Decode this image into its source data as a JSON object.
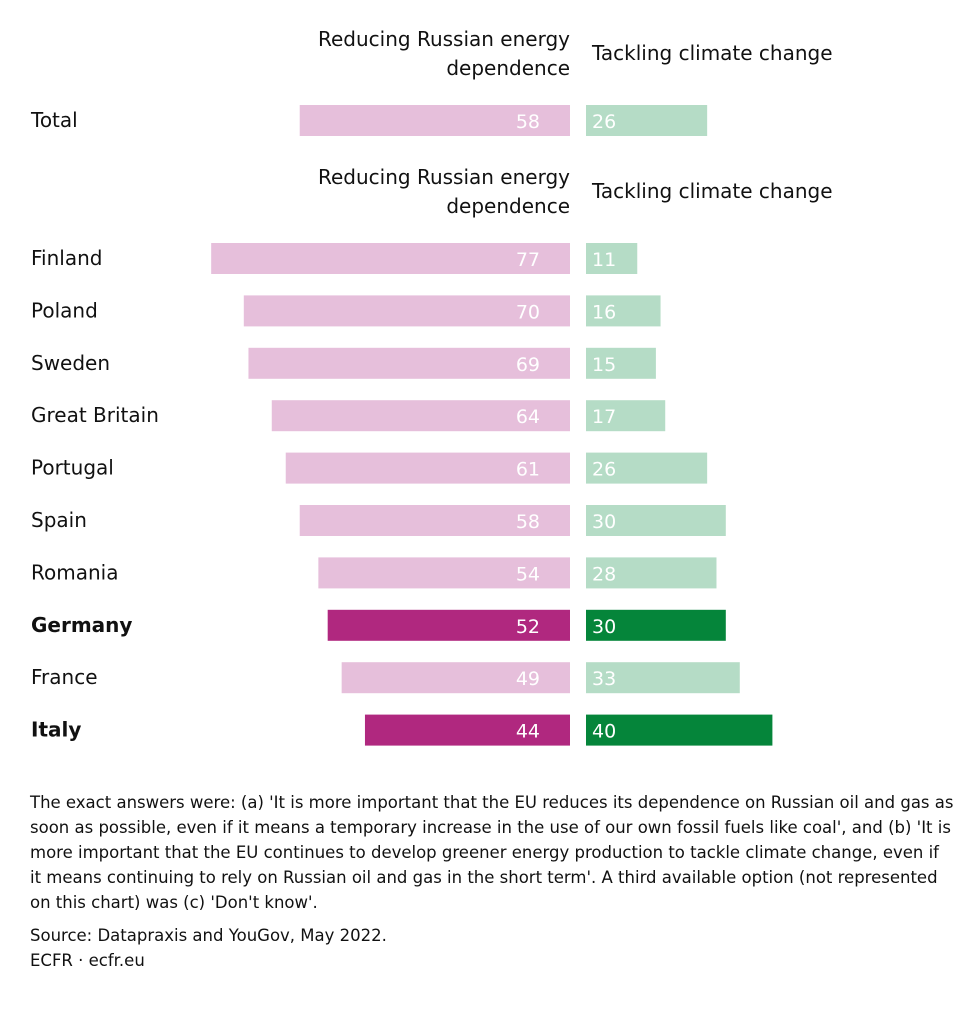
{
  "chart_data": {
    "type": "bar",
    "orientation": "horizontal-diverging",
    "series": [
      {
        "name": "Reducing Russian energy dependence",
        "header_lines": [
          "Reducing Russian energy",
          "dependence"
        ],
        "color": "#e6bfdb",
        "highlight_color": "#b0287f"
      },
      {
        "name": "Tackling climate change",
        "header_lines": [
          "Tackling climate change"
        ],
        "color": "#b5dcc6",
        "highlight_color": "#05853a"
      }
    ],
    "groups": [
      {
        "rows": [
          {
            "category": "Total",
            "values": [
              58,
              26
            ],
            "highlight": false
          }
        ]
      },
      {
        "rows": [
          {
            "category": "Finland",
            "values": [
              77,
              11
            ],
            "highlight": false
          },
          {
            "category": "Poland",
            "values": [
              70,
              16
            ],
            "highlight": false
          },
          {
            "category": "Sweden",
            "values": [
              69,
              15
            ],
            "highlight": false
          },
          {
            "category": "Great Britain",
            "values": [
              64,
              17
            ],
            "highlight": false
          },
          {
            "category": "Portugal",
            "values": [
              61,
              26
            ],
            "highlight": false
          },
          {
            "category": "Spain",
            "values": [
              58,
              30
            ],
            "highlight": false
          },
          {
            "category": "Romania",
            "values": [
              54,
              28
            ],
            "highlight": false
          },
          {
            "category": "Germany",
            "values": [
              52,
              30
            ],
            "highlight": true
          },
          {
            "category": "France",
            "values": [
              49,
              33
            ],
            "highlight": false
          },
          {
            "category": "Italy",
            "values": [
              44,
              40
            ],
            "highlight": true
          }
        ]
      }
    ],
    "unit": "%"
  },
  "notes": {
    "text": "The exact answers were: (a) 'It is more important that the EU reduces its dependence on Russian oil and gas as soon as possible, even if it means a temporary increase in the use of our own fossil fuels like coal', and (b) 'It is more important that the EU continues to develop greener energy production to tackle climate change, even if it means continuing to rely on Russian oil and gas in the short term'. A third available option (not represented on this chart) was (c) 'Don't know'.",
    "source": "Source: Datapraxis and YouGov, May 2022.",
    "credit": "ECFR · ecfr.eu"
  }
}
